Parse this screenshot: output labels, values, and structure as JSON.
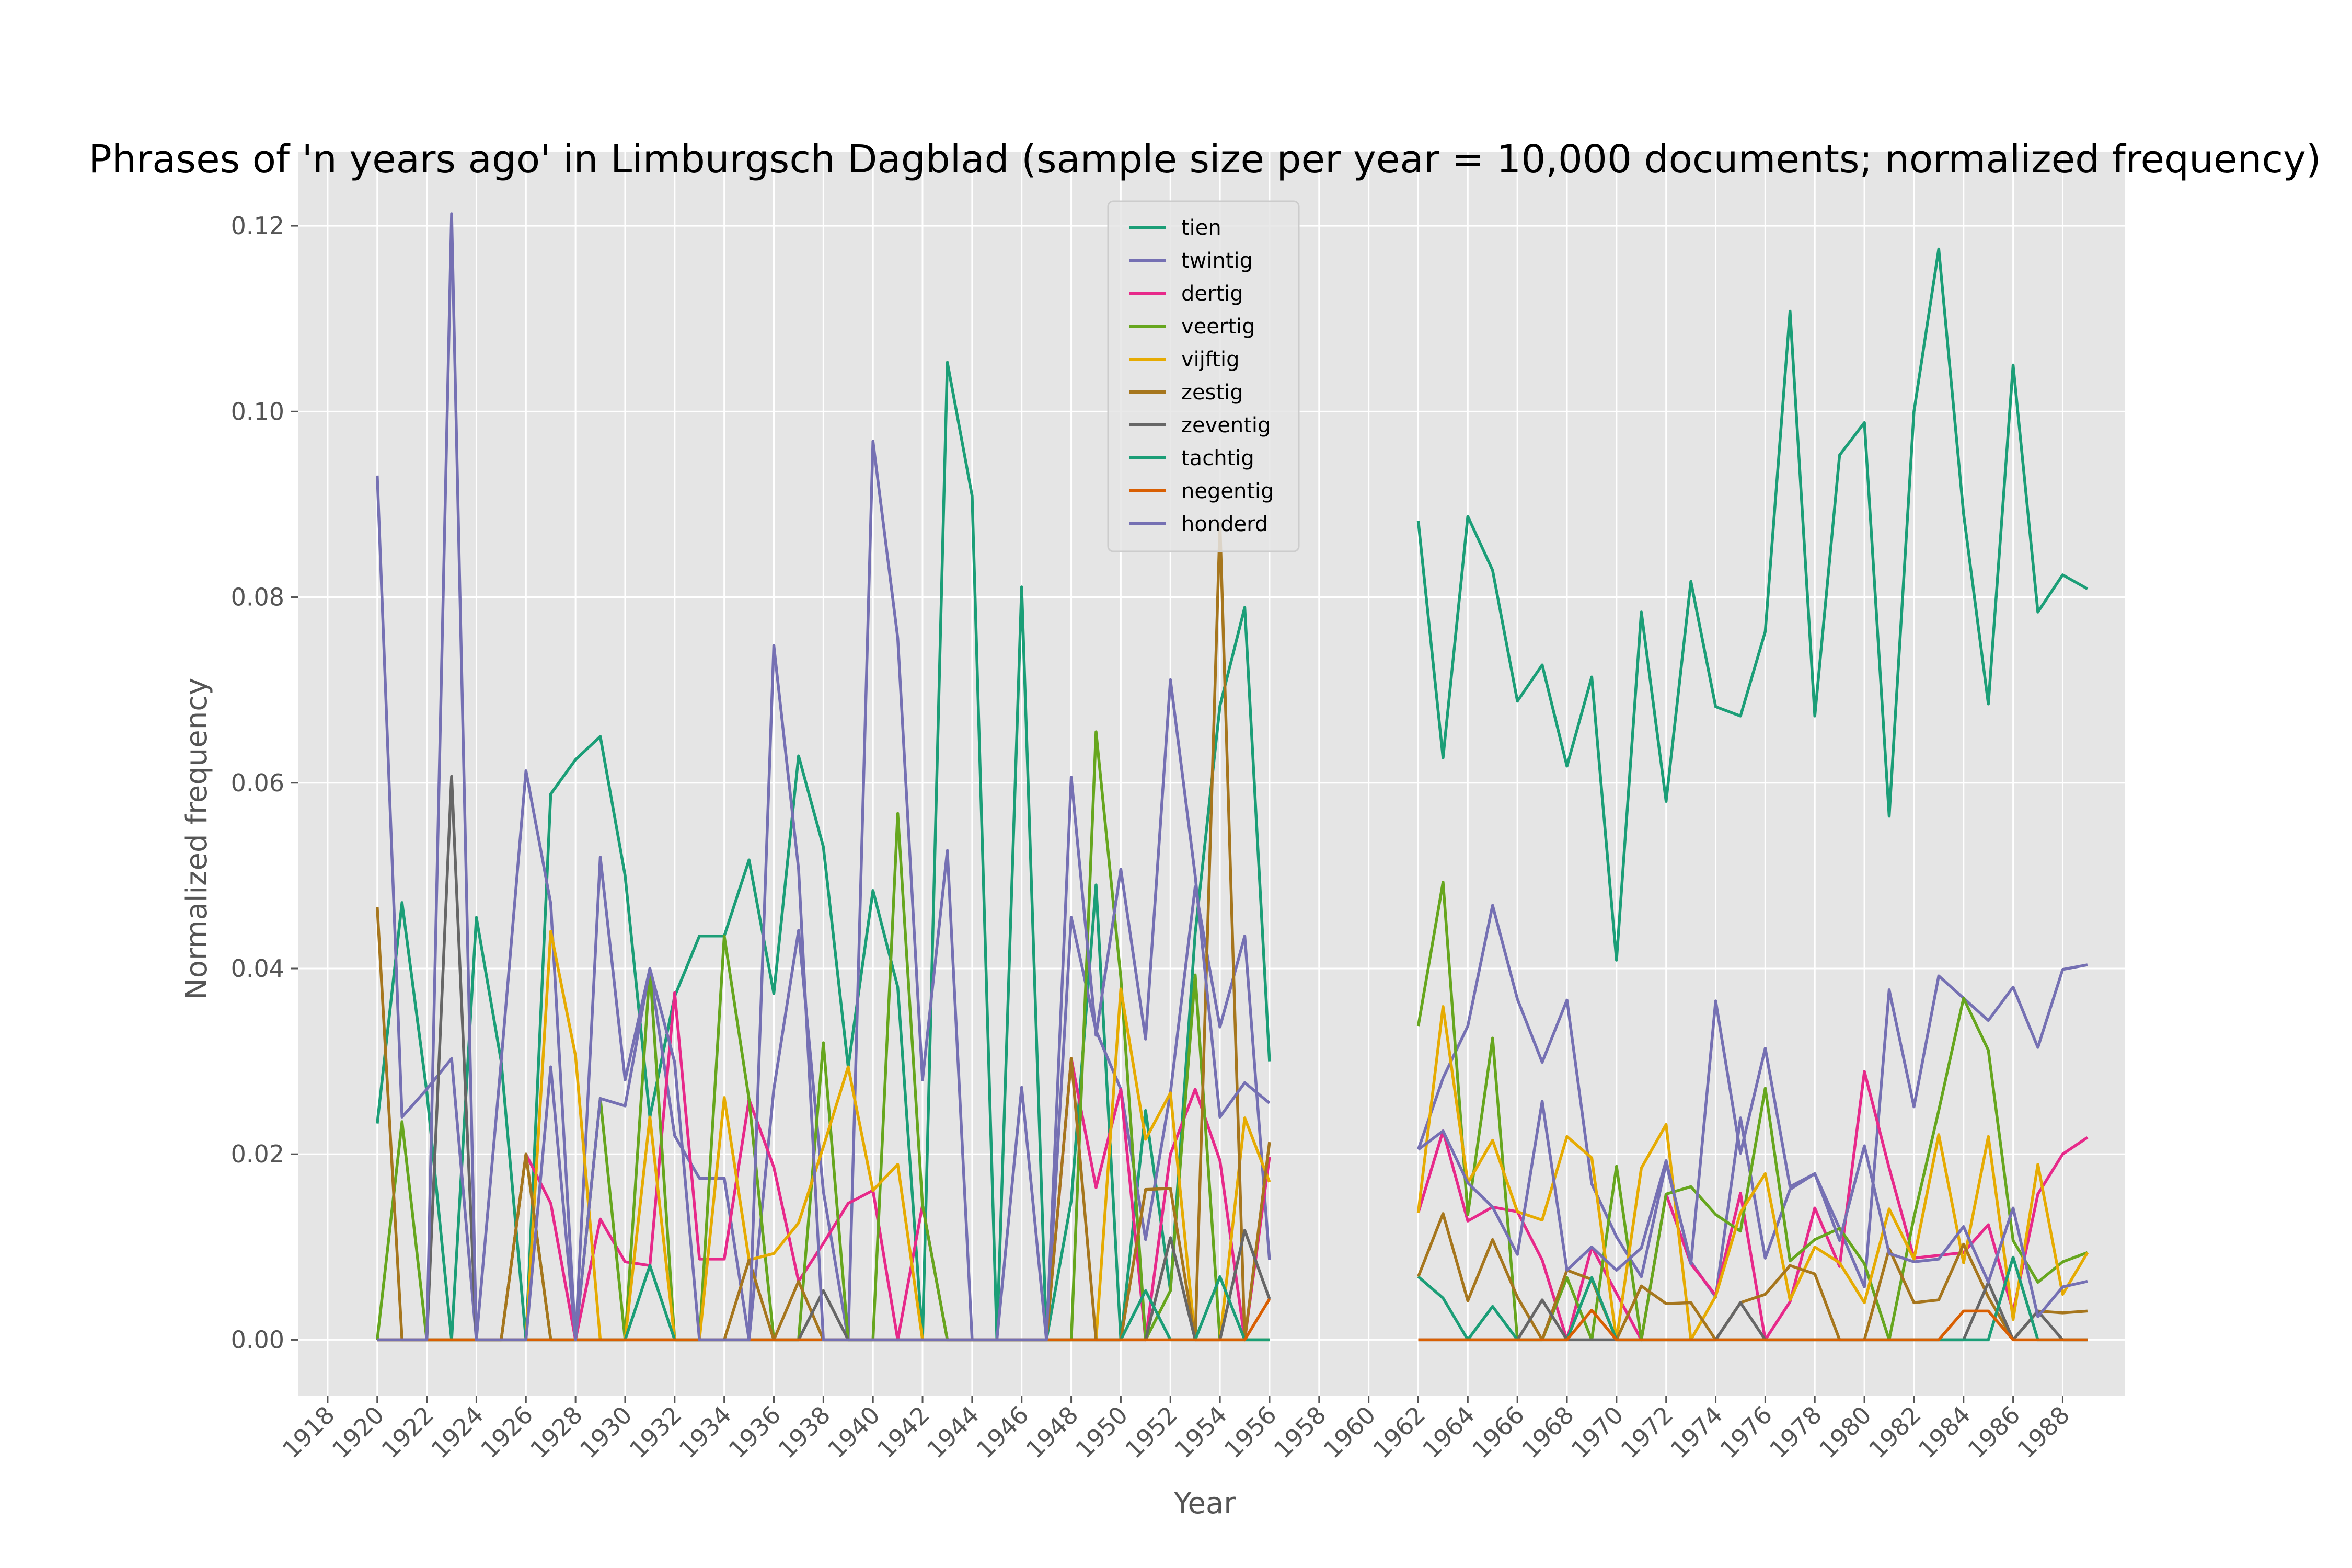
{
  "chart_data": {
    "type": "line",
    "title": "Phrases of 'n years ago' in Limburgsch Dagblad (sample size per year = 10,000 documents; normalized frequency)",
    "xlabel": "Year",
    "ylabel": "Normalized frequency",
    "xlim": [
      1916.8,
      1990.5
    ],
    "ylim": [
      -0.006,
      0.128
    ],
    "x_ticks": [
      1918,
      1920,
      1922,
      1924,
      1926,
      1928,
      1930,
      1932,
      1934,
      1936,
      1938,
      1940,
      1942,
      1944,
      1946,
      1948,
      1950,
      1952,
      1954,
      1956,
      1958,
      1960,
      1962,
      1964,
      1966,
      1968,
      1970,
      1972,
      1974,
      1976,
      1978,
      1980,
      1982,
      1984,
      1986,
      1988
    ],
    "y_ticks": [
      0.0,
      0.02,
      0.04,
      0.06,
      0.08,
      0.1,
      0.12
    ],
    "y_tick_labels": [
      "0.00",
      "0.02",
      "0.04",
      "0.06",
      "0.08",
      "0.10",
      "0.12"
    ],
    "grid": true,
    "legend_position": "top-center",
    "x_segments": [
      [
        1920,
        1956
      ],
      [
        1962,
        1989
      ]
    ],
    "series": [
      {
        "name": "tien",
        "color": "#1b9e77",
        "values": [
          [
            0.0233,
            0.0471,
            0.0267,
            0.0,
            0.0455,
            0.03,
            0.0,
            0.0588,
            0.0625,
            0.065,
            0.05,
            0.024,
            0.037,
            0.0435,
            0.0435,
            0.0517,
            0.0373,
            0.0629,
            0.0531,
            0.0294,
            0.0484,
            0.038,
            0.0,
            0.1053,
            0.0909,
            0.0,
            0.0811,
            0.0,
            0.015,
            0.049,
            0.0,
            0.0247,
            0.0053,
            0.0438,
            0.0683,
            0.0789,
            0.03
          ],
          [
            0.0882,
            0.0627,
            0.0887,
            0.0829,
            0.0688,
            0.0727,
            0.0618,
            0.0714,
            0.0409,
            0.0784,
            0.058,
            0.0817,
            0.0682,
            0.0672,
            0.0763,
            0.1108,
            0.0672,
            0.0953,
            0.0988,
            0.0564,
            0.1,
            0.1175,
            0.089,
            0.0685,
            0.105,
            0.0784,
            0.0824,
            0.0809
          ]
        ]
      },
      {
        "name": "twintig",
        "color": "#7570b3",
        "values": [
          [
            0.0931,
            0.024,
            0.027,
            0.0303,
            0.0,
            0.03,
            0.0613,
            0.047,
            0.0,
            0.052,
            0.028,
            0.04,
            0.022,
            0.0174,
            0.0174,
            0.0,
            0.027,
            0.0441,
            0.016,
            0.0,
            0.0968,
            0.0756,
            0.028,
            0.0527,
            0.0,
            0.0,
            0.0272,
            0.0,
            0.0455,
            0.0333,
            0.027,
            0.0108,
            0.0266,
            0.0488,
            0.0337,
            0.0435,
            0.0086
          ],
          [
            0.0205,
            0.0282,
            0.0338,
            0.0468,
            0.0367,
            0.0299,
            0.0366,
            0.0168,
            0.0111,
            0.0068,
            0.019,
            0.0084,
            0.0046,
            0.0239,
            0.0088,
            0.0162,
            0.0179,
            0.012,
            0.0057,
            0.0377,
            0.0251,
            0.0392,
            0.0368,
            0.0344,
            0.038,
            0.0315,
            0.0399,
            0.0404
          ]
        ]
      },
      {
        "name": "dertig",
        "color": "#e7298a",
        "values": [
          [
            0.0,
            0.0,
            0.0,
            0.0,
            0.0,
            0.0,
            0.02,
            0.0147,
            0.0,
            0.013,
            0.0084,
            0.008,
            0.0374,
            0.0087,
            0.0087,
            0.0259,
            0.0186,
            0.0063,
            0.0104,
            0.0147,
            0.0161,
            0.0,
            0.0145,
            0.0,
            0.0,
            0.0,
            0.0,
            0.0,
            0.0303,
            0.0164,
            0.027,
            0.0,
            0.02,
            0.027,
            0.0193,
            0.0,
            0.0197
          ],
          [
            0.0137,
            0.0225,
            0.0128,
            0.0143,
            0.0138,
            0.0086,
            0.0,
            0.01,
            0.005,
            0.0,
            0.0157,
            0.0082,
            0.0048,
            0.0158,
            0.0,
            0.0041,
            0.0142,
            0.0079,
            0.0289,
            0.0185,
            0.0088,
            0.0091,
            0.0094,
            0.0124,
            0.003,
            0.0157,
            0.02,
            0.0218
          ]
        ]
      },
      {
        "name": "veertig",
        "color": "#66a61e",
        "values": [
          [
            0.0,
            0.0235,
            0.0,
            0.0,
            0.0,
            0.0,
            0.02,
            0.0,
            0.0,
            0.026,
            0.0,
            0.04,
            0.0,
            0.0,
            0.0435,
            0.0259,
            0.0,
            0.0,
            0.032,
            0.0,
            0.0,
            0.0567,
            0.0145,
            0.0,
            0.0,
            0.0,
            0.0,
            0.0,
            0.0,
            0.0655,
            0.039,
            0.0,
            0.0053,
            0.0393,
            0.0,
            0.0,
            0.0
          ],
          [
            0.0338,
            0.0493,
            0.0135,
            0.0325,
            0.0,
            0.0,
            0.0067,
            0.0,
            0.0187,
            0.0,
            0.0157,
            0.0165,
            0.0135,
            0.0117,
            0.0271,
            0.0085,
            0.0108,
            0.012,
            0.0082,
            0.0,
            0.0132,
            0.0247,
            0.0368,
            0.0312,
            0.0107,
            0.0062,
            0.0084,
            0.0094
          ]
        ]
      },
      {
        "name": "vijftig",
        "color": "#e6ab02",
        "values": [
          [
            0.0,
            0.0,
            0.0,
            0.0,
            0.0,
            0.0,
            0.0,
            0.044,
            0.0306,
            0.0,
            0.0,
            0.024,
            0.0,
            0.0,
            0.0261,
            0.0086,
            0.0093,
            0.0126,
            0.0208,
            0.0294,
            0.0161,
            0.0189,
            0.0,
            0.0,
            0.0,
            0.0,
            0.0,
            0.0,
            0.0,
            0.0,
            0.0378,
            0.0216,
            0.0266,
            0.0,
            0.0,
            0.0239,
            0.017
          ],
          [
            0.0137,
            0.0359,
            0.0169,
            0.0215,
            0.0138,
            0.0129,
            0.0219,
            0.0196,
            0.0,
            0.0185,
            0.0232,
            0.0,
            0.0047,
            0.0137,
            0.0179,
            0.0043,
            0.01,
            0.0083,
            0.004,
            0.0141,
            0.0087,
            0.0221,
            0.0083,
            0.0219,
            0.0022,
            0.0189,
            0.0049,
            0.0094
          ]
        ]
      },
      {
        "name": "zestig",
        "color": "#a6761d",
        "values": [
          [
            0.0466,
            0.0,
            0.0,
            0.0,
            0.0,
            0.0,
            0.02,
            0.0,
            0.0,
            0.0,
            0.0,
            0.0,
            0.0,
            0.0,
            0.0,
            0.0086,
            0.0,
            0.0063,
            0.0,
            0.0,
            0.0,
            0.0,
            0.0,
            0.0,
            0.0,
            0.0,
            0.0,
            0.0,
            0.0303,
            0.0,
            0.0,
            0.0162,
            0.0163,
            0.0,
            0.088,
            0.0,
            0.0213
          ],
          [
            0.0068,
            0.0136,
            0.0042,
            0.0108,
            0.0046,
            0.0,
            0.0075,
            0.0065,
            0.0,
            0.0058,
            0.0039,
            0.004,
            0.0,
            0.004,
            0.0049,
            0.008,
            0.0071,
            0.0,
            0.0,
            0.0098,
            0.004,
            0.0043,
            0.0103,
            0.0046,
            0.0,
            0.0031,
            0.0029,
            0.0031
          ]
        ]
      },
      {
        "name": "zeventig",
        "color": "#666666",
        "values": [
          [
            0.0,
            0.0,
            0.0,
            0.0607,
            0.0,
            0.0,
            0.0,
            0.0,
            0.0,
            0.0,
            0.0,
            0.0,
            0.0,
            0.0,
            0.0,
            0.0,
            0.0,
            0.0,
            0.0053,
            0.0,
            0.0,
            0.0,
            0.0,
            0.0,
            0.0,
            0.0,
            0.0,
            0.0,
            0.0,
            0.0,
            0.0,
            0.0,
            0.011,
            0.0,
            0.0,
            0.0118,
            0.0044
          ],
          [
            0.0,
            0.0,
            0.0,
            0.0,
            0.0,
            0.0043,
            0.0,
            0.0,
            0.0,
            0.0,
            0.0,
            0.0,
            0.0,
            0.004,
            0.0,
            0.0,
            0.0,
            0.0,
            0.0,
            0.0,
            0.0,
            0.0,
            0.0,
            0.0062,
            0.0,
            0.0031,
            0.0,
            0.0
          ]
        ]
      },
      {
        "name": "tachtig",
        "color": "#1b9e77",
        "values": [
          [
            0.0,
            0.0,
            0.0,
            0.0,
            0.0,
            0.0,
            0.0,
            0.0,
            0.0,
            0.0,
            0.0,
            0.008,
            0.0,
            0.0,
            0.0,
            0.0,
            0.0,
            0.0,
            0.0,
            0.0,
            0.0,
            0.0,
            0.0,
            0.0,
            0.0,
            0.0,
            0.0,
            0.0,
            0.0,
            0.0,
            0.0,
            0.0053,
            0.0,
            0.0,
            0.0068,
            0.0,
            0.0
          ],
          [
            0.0068,
            0.0045,
            0.0,
            0.0036,
            0.0,
            0.0,
            0.0,
            0.0067,
            0.0,
            0.0,
            0.0,
            0.0,
            0.0,
            0.0,
            0.0,
            0.0,
            0.0,
            0.0,
            0.0,
            0.0,
            0.0,
            0.0,
            0.0,
            0.0,
            0.0089,
            0.0,
            0.0,
            0.0
          ]
        ]
      },
      {
        "name": "negentig",
        "color": "#d95f02",
        "values": [
          [
            0.0,
            0.0,
            0.0,
            0.0,
            0.0,
            0.0,
            0.0,
            0.0,
            0.0,
            0.0,
            0.0,
            0.0,
            0.0,
            0.0,
            0.0,
            0.0,
            0.0,
            0.0,
            0.0,
            0.0,
            0.0,
            0.0,
            0.0,
            0.0,
            0.0,
            0.0,
            0.0,
            0.0,
            0.0,
            0.0,
            0.0,
            0.0,
            0.0,
            0.0,
            0.0,
            0.0,
            0.0044
          ],
          [
            0.0,
            0.0,
            0.0,
            0.0,
            0.0,
            0.0,
            0.0,
            0.0032,
            0.0,
            0.0,
            0.0,
            0.0,
            0.0,
            0.0,
            0.0,
            0.0,
            0.0,
            0.0,
            0.0,
            0.0,
            0.0,
            0.0,
            0.0031,
            0.0031,
            0.0,
            0.0,
            0.0,
            0.0
          ]
        ]
      },
      {
        "name": "honderd",
        "color": "#7570b3",
        "values": [
          [
            0.0,
            0.0,
            0.0,
            0.1213,
            0.0,
            0.0,
            0.0,
            0.0294,
            0.0,
            0.026,
            0.0252,
            0.04,
            0.0299,
            0.0,
            0.0,
            0.0,
            0.0748,
            0.0507,
            0.0,
            0.0,
            0.0,
            0.0,
            0.0,
            0.0,
            0.0,
            0.0,
            0.0,
            0.0,
            0.0606,
            0.0328,
            0.0507,
            0.0324,
            0.0711,
            0.05,
            0.024,
            0.0277,
            0.0255
          ],
          [
            0.0205,
            0.0225,
            0.0169,
            0.0143,
            0.0092,
            0.0257,
            0.0075,
            0.01,
            0.0075,
            0.0099,
            0.0193,
            0.0082,
            0.0365,
            0.0201,
            0.0314,
            0.0165,
            0.0179,
            0.0107,
            0.0209,
            0.0093,
            0.0084,
            0.0087,
            0.0122,
            0.0062,
            0.0142,
            0.0025,
            0.0057,
            0.0063
          ]
        ]
      }
    ]
  }
}
